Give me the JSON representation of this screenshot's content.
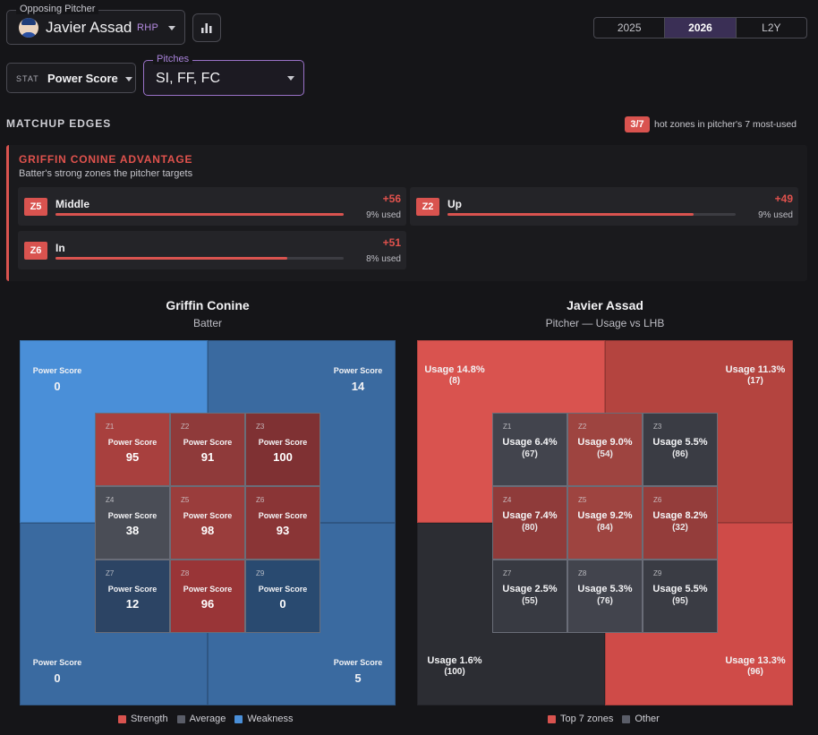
{
  "pitcher_select": {
    "label": "Opposing Pitcher",
    "name": "Javier Assad",
    "hand": "RHP"
  },
  "years": {
    "options": [
      "2025",
      "2026",
      "L2Y"
    ],
    "selected": "2026"
  },
  "stat_select": {
    "tag": "STAT",
    "value": "Power Score"
  },
  "pitches_select": {
    "label": "Pitches",
    "value": "SI, FF, FC"
  },
  "matchup": {
    "title": "MATCHUP EDGES",
    "hot_badge": "3/7",
    "hot_text": "hot zones in pitcher's 7 most-used"
  },
  "advantage": {
    "title": "GRIFFIN CONINE ADVANTAGE",
    "subtitle": "Batter's strong zones the pitcher targets",
    "zones": [
      {
        "badge": "Z5",
        "name": "Middle",
        "delta": "+56",
        "used": "9% used",
        "fill": 1.0
      },
      {
        "badge": "Z2",
        "name": "Up",
        "delta": "+49",
        "used": "9% used",
        "fill": 0.855
      },
      {
        "badge": "Z6",
        "name": "In",
        "delta": "+51",
        "used": "8% used",
        "fill": 0.805
      }
    ]
  },
  "batter_panel": {
    "title": "Griffin Conine",
    "subtitle": "Batter",
    "outer": [
      {
        "label": "Power Score",
        "value": "0"
      },
      {
        "label": "Power Score",
        "value": "14"
      },
      {
        "label": "Power Score",
        "value": "0"
      },
      {
        "label": "Power Score",
        "value": "5"
      }
    ],
    "outer_colors": [
      "#4a8fd8",
      "#3a6aa0",
      "#3a6aa0",
      "#3a6aa0"
    ],
    "cells": [
      {
        "zone": "Z1",
        "label": "Power Score",
        "value": "95",
        "color": "#a8403e"
      },
      {
        "zone": "Z2",
        "label": "Power Score",
        "value": "91",
        "color": "#8f3a3a"
      },
      {
        "zone": "Z3",
        "label": "Power Score",
        "value": "100",
        "color": "#7f3133"
      },
      {
        "zone": "Z4",
        "label": "Power Score",
        "value": "38",
        "color": "#4a4d56"
      },
      {
        "zone": "Z5",
        "label": "Power Score",
        "value": "98",
        "color": "#9a3d3c"
      },
      {
        "zone": "Z6",
        "label": "Power Score",
        "value": "93",
        "color": "#8a3536"
      },
      {
        "zone": "Z7",
        "label": "Power Score",
        "value": "12",
        "color": "#2c4464"
      },
      {
        "zone": "Z8",
        "label": "Power Score",
        "value": "96",
        "color": "#993537"
      },
      {
        "zone": "Z9",
        "label": "Power Score",
        "value": "0",
        "color": "#294a70"
      }
    ],
    "legend": [
      {
        "label": "Strength",
        "color": "#d9534f"
      },
      {
        "label": "Average",
        "color": "#5a5d68"
      },
      {
        "label": "Weakness",
        "color": "#4a8fd8"
      }
    ]
  },
  "pitcher_panel": {
    "title": "Javier Assad",
    "subtitle": "Pitcher — Usage vs LHB",
    "outer": [
      {
        "label": "Usage 14.8%",
        "value": "(8)"
      },
      {
        "label": "Usage 11.3%",
        "value": "(17)"
      },
      {
        "label": "Usage 1.6%",
        "value": "(100)"
      },
      {
        "label": "Usage 13.3%",
        "value": "(96)"
      }
    ],
    "outer_colors": [
      "#d9534f",
      "#b4443f",
      "#2c2d33",
      "#cf4b48"
    ],
    "cells": [
      {
        "zone": "Z1",
        "label": "Usage 6.4%",
        "value": "(67)",
        "color": "#42444d"
      },
      {
        "zone": "Z2",
        "label": "Usage 9.0%",
        "value": "(54)",
        "color": "#9e4440"
      },
      {
        "zone": "Z3",
        "label": "Usage 5.5%",
        "value": "(86)",
        "color": "#3a3c44"
      },
      {
        "zone": "Z4",
        "label": "Usage 7.4%",
        "value": "(80)",
        "color": "#8f3b3a"
      },
      {
        "zone": "Z5",
        "label": "Usage 9.2%",
        "value": "(84)",
        "color": "#9e4440"
      },
      {
        "zone": "Z6",
        "label": "Usage 8.2%",
        "value": "(32)",
        "color": "#943d3b"
      },
      {
        "zone": "Z7",
        "label": "Usage 2.5%",
        "value": "(55)",
        "color": "#383a42"
      },
      {
        "zone": "Z8",
        "label": "Usage 5.3%",
        "value": "(76)",
        "color": "#42444d"
      },
      {
        "zone": "Z9",
        "label": "Usage 5.5%",
        "value": "(95)",
        "color": "#3a3c44"
      }
    ],
    "legend": [
      {
        "label": "Top 7 zones",
        "color": "#d9534f"
      },
      {
        "label": "Other",
        "color": "#5a5d68"
      }
    ]
  }
}
